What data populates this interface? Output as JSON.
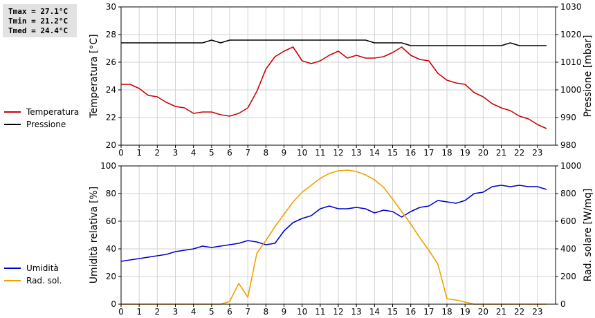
{
  "stats": {
    "tmax": "Tmax = 27.1°C",
    "tmin": "Tmin = 21.2°C",
    "tmed": "Tmed = 24.4°C"
  },
  "chart_data": [
    {
      "type": "line",
      "panel": "top",
      "ylabel_left": "Temperatura [°C]",
      "ylabel_right": "Pressione [mbar]",
      "xlim": [
        0,
        24
      ],
      "x_ticks": [
        0,
        1,
        2,
        3,
        4,
        5,
        6,
        7,
        8,
        9,
        10,
        11,
        12,
        13,
        14,
        15,
        16,
        17,
        18,
        19,
        20,
        21,
        22,
        23
      ],
      "ylim_left": [
        20,
        30
      ],
      "y_ticks_left": [
        20,
        22,
        24,
        26,
        28,
        30
      ],
      "ylim_right": [
        980,
        1030
      ],
      "y_ticks_right": [
        980,
        990,
        1000,
        1010,
        1020,
        1030
      ],
      "grid": true,
      "legend_position": "left",
      "series": [
        {
          "name": "Temperatura",
          "axis": "left",
          "color": "#cc0000",
          "x": [
            0,
            0.5,
            1,
            1.5,
            2,
            2.5,
            3,
            3.5,
            4,
            4.5,
            5,
            5.5,
            6,
            6.5,
            7,
            7.5,
            8,
            8.5,
            9,
            9.5,
            10,
            10.5,
            11,
            11.5,
            12,
            12.5,
            13,
            13.5,
            14,
            14.5,
            15,
            15.5,
            16,
            16.5,
            17,
            17.5,
            18,
            18.5,
            19,
            19.5,
            20,
            20.5,
            21,
            21.5,
            22,
            22.5,
            23,
            23.5
          ],
          "y": [
            24.4,
            24.4,
            24.1,
            23.6,
            23.5,
            23.1,
            22.8,
            22.7,
            22.3,
            22.4,
            22.4,
            22.2,
            22.1,
            22.3,
            22.7,
            23.9,
            25.5,
            26.4,
            26.8,
            27.1,
            26.1,
            25.9,
            26.1,
            26.5,
            26.8,
            26.3,
            26.5,
            26.3,
            26.3,
            26.4,
            26.7,
            27.1,
            26.5,
            26.2,
            26.1,
            25.2,
            24.7,
            24.5,
            24.4,
            23.8,
            23.5,
            23.0,
            22.7,
            22.5,
            22.1,
            21.9,
            21.5,
            21.2
          ]
        },
        {
          "name": "Pressione",
          "axis": "right",
          "color": "#000000",
          "x": [
            0,
            1,
            2,
            3,
            4,
            4.5,
            5,
            5.5,
            6,
            7,
            8,
            9,
            10,
            11,
            12,
            13,
            13.5,
            14,
            15,
            15.5,
            16,
            17,
            18,
            19,
            20,
            21,
            21.5,
            22,
            23,
            23.5
          ],
          "y": [
            1017,
            1017,
            1017,
            1017,
            1017,
            1017,
            1018,
            1017,
            1018,
            1018,
            1018,
            1018,
            1018,
            1018,
            1018,
            1018,
            1018,
            1017,
            1017,
            1017,
            1016,
            1016,
            1016,
            1016,
            1016,
            1016,
            1017,
            1016,
            1016,
            1016
          ]
        }
      ]
    },
    {
      "type": "line",
      "panel": "bottom",
      "ylabel_left": "Umidità relativa [%]",
      "ylabel_right": "Rad. solare [W/mq]",
      "xlim": [
        0,
        24
      ],
      "x_ticks": [
        0,
        1,
        2,
        3,
        4,
        5,
        6,
        7,
        8,
        9,
        10,
        11,
        12,
        13,
        14,
        15,
        16,
        17,
        18,
        19,
        20,
        21,
        22,
        23
      ],
      "ylim_left": [
        0,
        100
      ],
      "y_ticks_left": [
        0,
        20,
        40,
        60,
        80,
        100
      ],
      "ylim_right": [
        0,
        1000
      ],
      "y_ticks_right": [
        0,
        200,
        400,
        600,
        800,
        1000
      ],
      "grid": true,
      "legend_position": "left",
      "series": [
        {
          "name": "Umidità",
          "axis": "left",
          "color": "#0000cc",
          "x": [
            0,
            0.5,
            1,
            1.5,
            2,
            2.5,
            3,
            3.5,
            4,
            4.5,
            5,
            5.5,
            6,
            6.5,
            7,
            7.5,
            8,
            8.5,
            9,
            9.5,
            10,
            10.5,
            11,
            11.5,
            12,
            12.5,
            13,
            13.5,
            14,
            14.5,
            15,
            15.5,
            16,
            16.5,
            17,
            17.5,
            18,
            18.5,
            19,
            19.5,
            20,
            20.5,
            21,
            21.5,
            22,
            22.5,
            23,
            23.5
          ],
          "y": [
            31,
            32,
            33,
            34,
            35,
            36,
            38,
            39,
            40,
            42,
            41,
            42,
            43,
            44,
            46,
            45,
            43,
            44,
            53,
            59,
            62,
            64,
            69,
            71,
            69,
            69,
            70,
            69,
            66,
            68,
            67,
            63,
            67,
            70,
            71,
            75,
            74,
            73,
            75,
            80,
            81,
            85,
            86,
            85,
            86,
            85,
            85,
            83
          ]
        },
        {
          "name": "Rad. sol.",
          "axis": "right",
          "color": "#f0a000",
          "x": [
            0,
            1,
            2,
            3,
            4,
            5,
            5.5,
            6,
            6.5,
            7,
            7.5,
            8,
            8.5,
            9,
            9.5,
            10,
            10.5,
            11,
            11.5,
            12,
            12.5,
            13,
            13.5,
            14,
            14.5,
            15,
            15.5,
            16,
            16.5,
            17,
            17.5,
            18,
            18.5,
            19,
            19.5,
            20,
            21,
            22,
            23,
            23.5
          ],
          "y": [
            0,
            0,
            0,
            0,
            0,
            0,
            0,
            20,
            150,
            50,
            370,
            460,
            560,
            650,
            740,
            810,
            860,
            910,
            945,
            965,
            970,
            960,
            935,
            900,
            845,
            760,
            670,
            580,
            480,
            390,
            290,
            40,
            30,
            15,
            0,
            0,
            0,
            0,
            0,
            0
          ]
        }
      ]
    }
  ]
}
